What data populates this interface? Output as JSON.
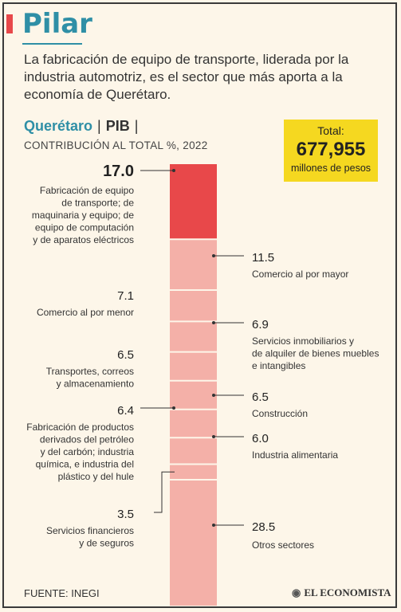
{
  "header": {
    "title": "Pilar",
    "subtitle": "La fabricación de equipo de transporte, liderada por la industria automotriz, es el sector que más aporta a la economía de Querétaro.",
    "heading_place": "Querétaro",
    "heading_metric": "PIB",
    "caption": "CONTRIBUCIÓN AL TOTAL %, 2022"
  },
  "total": {
    "label": "Total:",
    "value": "677,955",
    "unit": "millones de pesos"
  },
  "footer": {
    "source": "FUENTE: INEGI",
    "logo": "EL ECONOMISTA"
  },
  "colors": {
    "highlight": "#e8484a",
    "segment": "#f4b0a8",
    "divider": "#fdf6e9",
    "accent": "#2f8fa6",
    "total_bg": "#f5d820"
  },
  "chart_data": {
    "type": "bar",
    "stacked": true,
    "title": "",
    "ylabel": "CONTRIBUCIÓN AL TOTAL %, 2022",
    "segments": [
      {
        "value": 17.0,
        "value_label": "17.0",
        "label": [
          "Fabricación de equipo",
          "de transporte; de",
          "maquinaria y equipo; de",
          "equipo de computación",
          "y de aparatos eléctricos"
        ],
        "side": "left",
        "highlight": true
      },
      {
        "value": 11.5,
        "value_label": "11.5",
        "label": [
          "Comercio al por mayor"
        ],
        "side": "right",
        "highlight": false
      },
      {
        "value": 7.1,
        "value_label": "7.1",
        "label": [
          "Comercio al por menor"
        ],
        "side": "left",
        "highlight": false
      },
      {
        "value": 6.9,
        "value_label": "6.9",
        "label": [
          "Servicios inmobiliarios y",
          "de alquiler de bienes muebles",
          "e intangibles"
        ],
        "side": "right",
        "highlight": false
      },
      {
        "value": 6.5,
        "value_label": "6.5",
        "label": [
          "Transportes, correos",
          "y almacenamiento"
        ],
        "side": "left",
        "highlight": false
      },
      {
        "value": 6.5,
        "value_label": "6.5",
        "label": [
          "Construcción"
        ],
        "side": "right",
        "highlight": false
      },
      {
        "value": 6.4,
        "value_label": "6.4",
        "label": [
          "Fabricación de productos",
          "derivados del petróleo",
          "y del carbón; industria",
          "química, e industria del",
          "plástico y del hule"
        ],
        "side": "left",
        "highlight": false
      },
      {
        "value": 6.0,
        "value_label": "6.0",
        "label": [
          "Industria alimentaria"
        ],
        "side": "right",
        "highlight": false
      },
      {
        "value": 3.5,
        "value_label": "3.5",
        "label": [
          "Servicios financieros",
          "y de seguros"
        ],
        "side": "left",
        "highlight": false
      },
      {
        "value": 28.5,
        "value_label": "28.5",
        "label": [
          "Otros sectores"
        ],
        "side": "right",
        "highlight": false
      }
    ]
  }
}
